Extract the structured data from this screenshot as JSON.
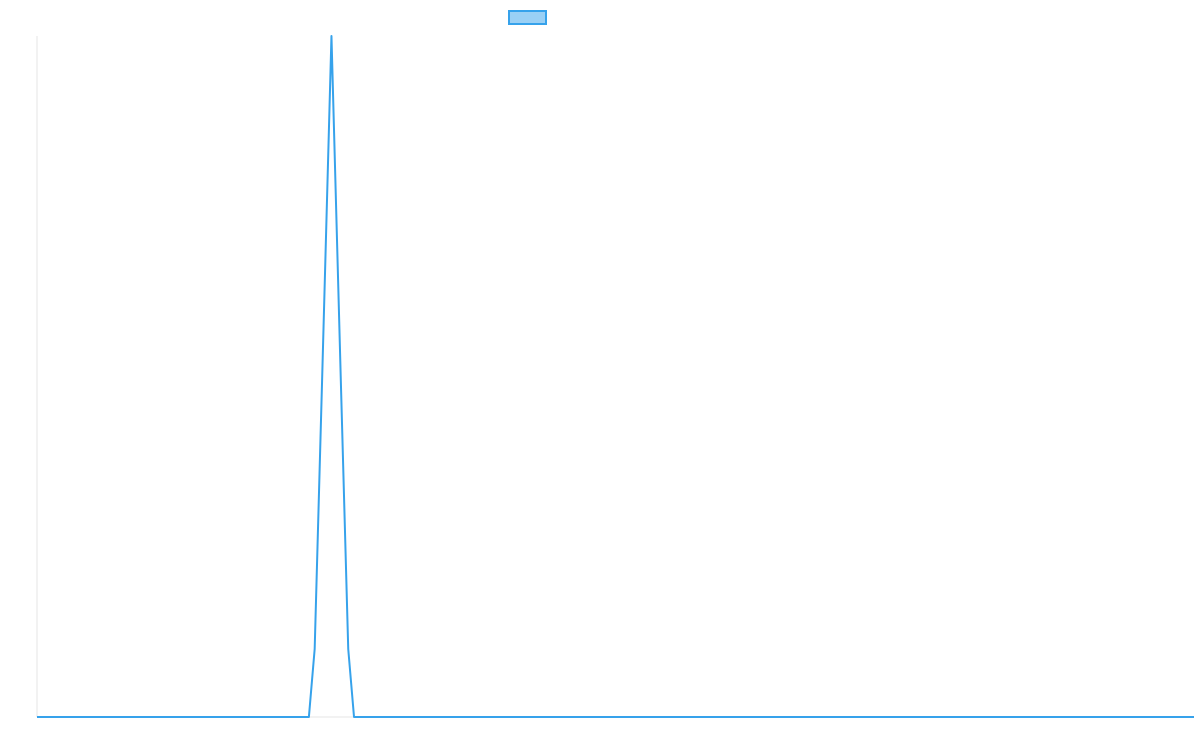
{
  "chart_data": {
    "type": "line",
    "title": "",
    "xlabel": "",
    "ylabel": "",
    "grid": false,
    "legend_position": "top",
    "series": [
      {
        "name": "",
        "color": "#36a2eb",
        "fill_color": "#9ad0f5",
        "points": [
          [
            0,
            0
          ],
          [
            0.235,
            0
          ],
          [
            0.24,
            0.1
          ],
          [
            0.2465,
            0.5
          ],
          [
            0.2545,
            1.0
          ],
          [
            0.2625,
            0.5
          ],
          [
            0.269,
            0.1
          ],
          [
            0.274,
            0
          ],
          [
            1.0,
            0
          ]
        ]
      }
    ],
    "xlim": [
      0,
      1
    ],
    "ylim": [
      0,
      1
    ]
  }
}
